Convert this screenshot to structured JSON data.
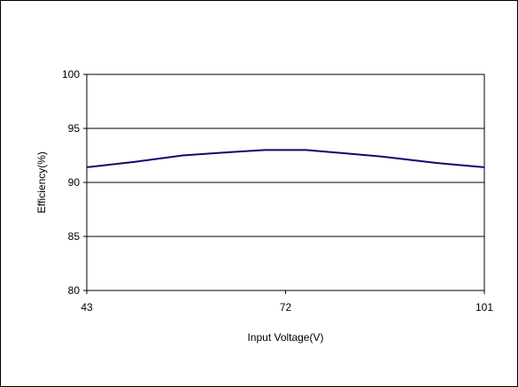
{
  "chart_data": {
    "type": "line",
    "xlabel": "Input Voltage(V)",
    "ylabel": "Efficiency(%)",
    "xlim": [
      43,
      101
    ],
    "ylim": [
      80,
      100
    ],
    "x_ticks": [
      43,
      72,
      101
    ],
    "y_ticks": [
      80,
      85,
      90,
      95,
      100
    ],
    "grid": "horizontal",
    "series": [
      {
        "color": "#0a0a6e",
        "x": [
          43,
          50,
          57,
          64,
          69,
          75,
          86,
          94,
          101
        ],
        "y": [
          91.4,
          91.9,
          92.5,
          92.8,
          93.0,
          93.0,
          92.4,
          91.8,
          91.4
        ]
      }
    ]
  }
}
